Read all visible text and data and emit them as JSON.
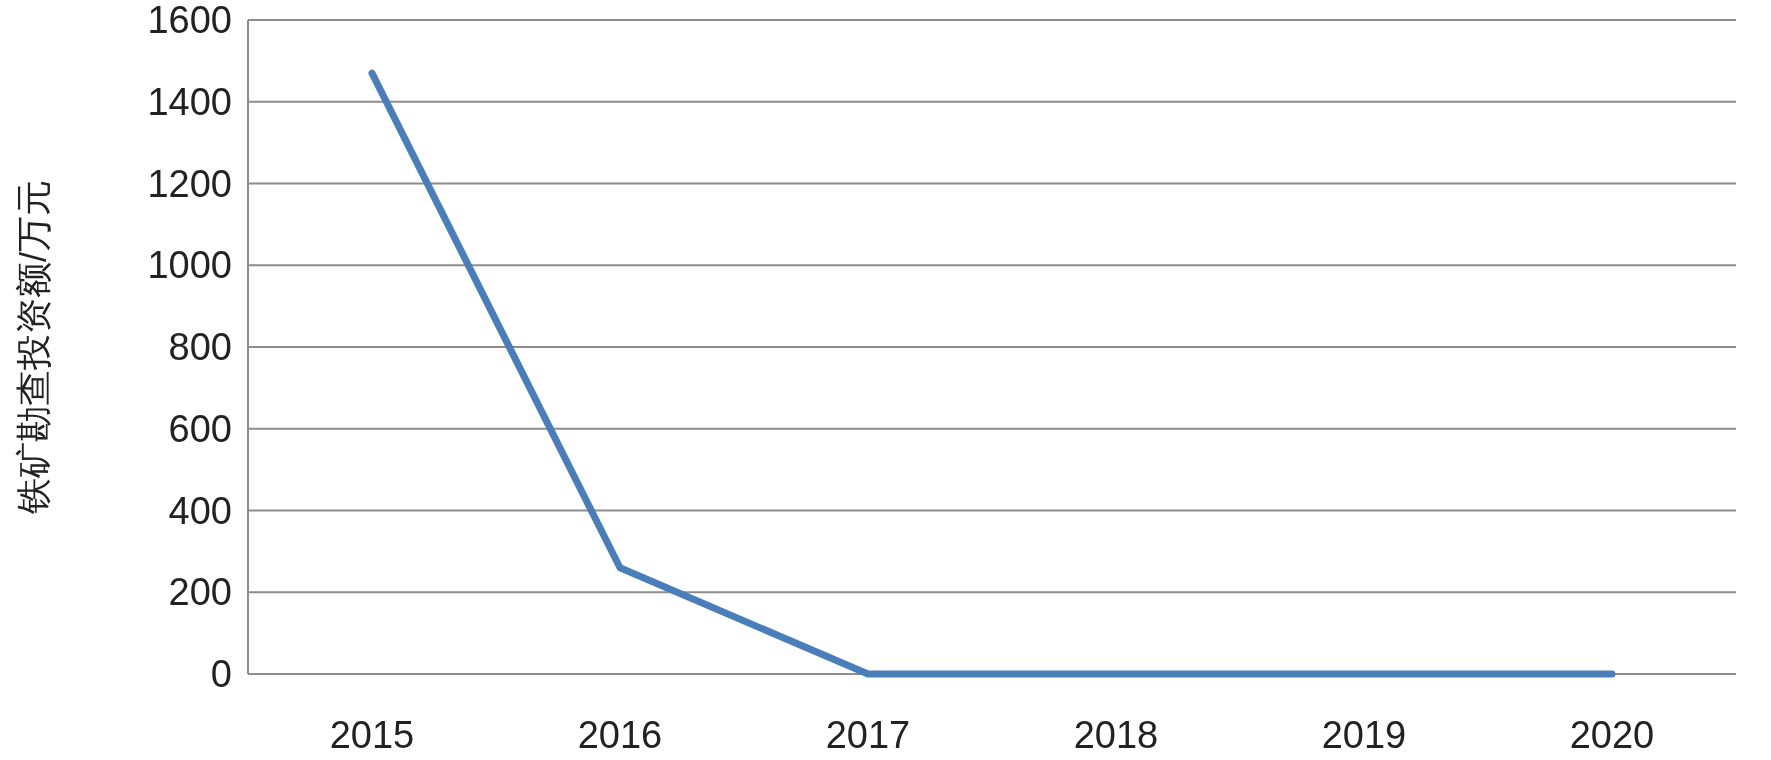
{
  "chart_data": {
    "type": "line",
    "ylabel": "铁矿勘查投资额/万元",
    "categories": [
      "2015",
      "2016",
      "2017",
      "2018",
      "2019",
      "2020"
    ],
    "series": [
      {
        "color": "#4a7ebb",
        "values": [
          1470,
          260,
          0,
          0,
          0,
          0
        ]
      }
    ],
    "ylim": [
      0,
      1600
    ],
    "yticks": [
      0,
      200,
      400,
      600,
      800,
      1000,
      1200,
      1400,
      1600
    ],
    "grid": "y",
    "marker": "none",
    "line_style": "solid"
  }
}
